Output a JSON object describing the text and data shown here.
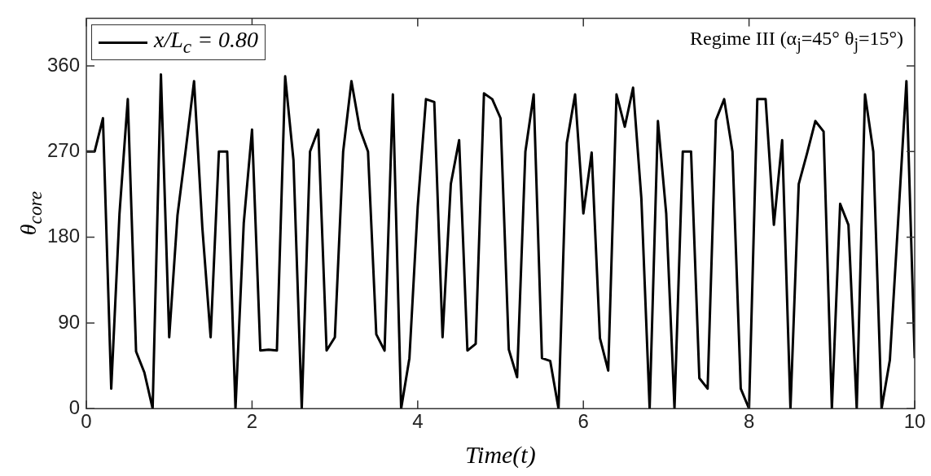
{
  "chart_data": {
    "type": "line",
    "xlabel": "Time(t)",
    "ylabel": "θ$_{core}$",
    "annotations": [
      "Regime III (α$_{j}$=45° θ$_{j}$=15°)"
    ],
    "xlim": [
      0,
      10
    ],
    "xticks": [
      0,
      2,
      4,
      6,
      8,
      10
    ],
    "ylim": [
      0,
      410
    ],
    "yticks": [
      0,
      90,
      180,
      270,
      360
    ],
    "legend": "top left",
    "marker": "none",
    "line_style": "solid",
    "series": [
      {
        "name": "x/L$_{c}$ = 0.80",
        "color": "#000000",
        "x": [
          0,
          0.1,
          0.2,
          0.3,
          0.4,
          0.5,
          0.6,
          0.7,
          0.8,
          0.9,
          1,
          1.1,
          1.2,
          1.3,
          1.4,
          1.5,
          1.6,
          1.7,
          1.8,
          1.9,
          2,
          2.1,
          2.2,
          2.3,
          2.4,
          2.5,
          2.6,
          2.7,
          2.8,
          2.9,
          3,
          3.1,
          3.2,
          3.3,
          3.4,
          3.5,
          3.6,
          3.7,
          3.8,
          3.9,
          4,
          4.1,
          4.2,
          4.3,
          4.4,
          4.5,
          4.6,
          4.7,
          4.8,
          4.9,
          5,
          5.1,
          5.2,
          5.3,
          5.4,
          5.5,
          5.6,
          5.7,
          5.8,
          5.9,
          6,
          6.1,
          6.2,
          6.3,
          6.4,
          6.5,
          6.6,
          6.7,
          6.8,
          6.9,
          7,
          7.1,
          7.2,
          7.3,
          7.4,
          7.5,
          7.6,
          7.7,
          7.8,
          7.9,
          8,
          8.1,
          8.2,
          8.3,
          8.4,
          8.5,
          8.6,
          8.7,
          8.8,
          8.9,
          9,
          9.1,
          9.2,
          9.3,
          9.4,
          9.5,
          9.6,
          9.7,
          9.8,
          9.9,
          10
        ],
        "values": [
          270,
          270,
          305,
          21,
          205,
          325,
          60,
          38,
          0,
          351,
          75,
          203,
          272,
          344,
          190,
          75,
          270,
          270,
          0,
          195,
          293,
          61,
          62,
          61,
          349,
          261,
          0,
          270,
          293,
          61,
          75,
          270,
          344,
          294,
          270,
          78,
          61,
          330,
          0,
          53,
          212,
          325,
          322,
          75,
          236,
          282,
          61,
          68,
          331,
          325,
          305,
          62,
          33,
          270,
          330,
          53,
          50,
          0,
          279,
          330,
          205,
          269,
          74,
          40,
          330,
          296,
          337,
          221,
          0,
          302,
          205,
          0,
          270,
          270,
          32,
          21,
          303,
          325,
          270,
          21,
          0,
          325,
          325,
          193,
          282,
          0,
          236,
          268,
          302,
          291,
          0,
          215,
          193,
          0,
          330,
          270,
          0,
          51,
          197,
          344,
          53
        ]
      }
    ]
  }
}
